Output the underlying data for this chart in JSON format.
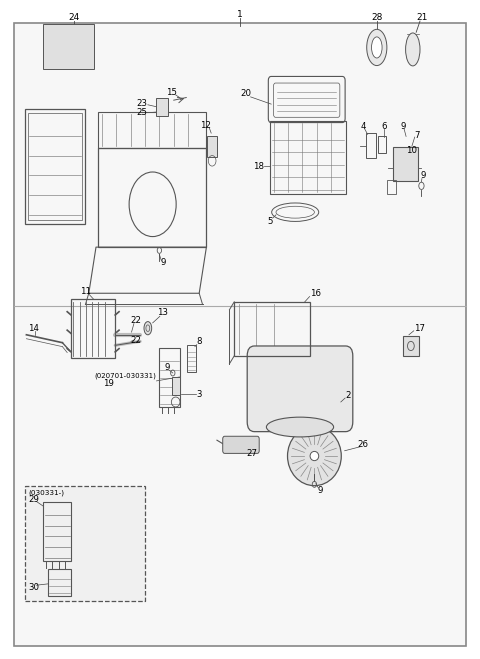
{
  "background_color": "#ffffff",
  "line_color": "#555555",
  "text_color": "#000000",
  "fig_width": 4.8,
  "fig_height": 6.59,
  "dpi": 100
}
